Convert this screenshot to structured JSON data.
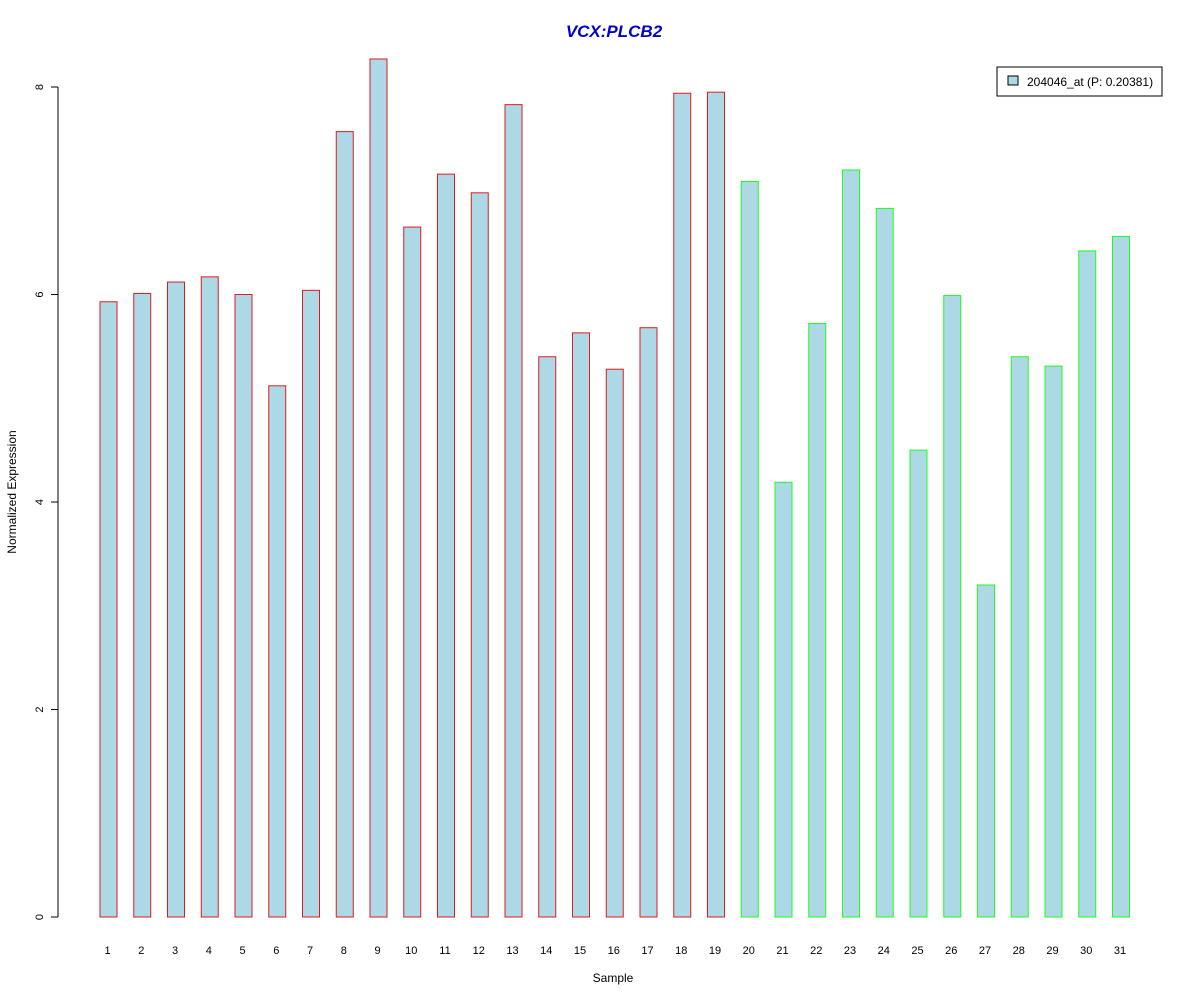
{
  "chart_data": {
    "type": "bar",
    "title": "VCX:PLCB2",
    "xlabel": "Sample",
    "ylabel": "Normalized Expression",
    "categories": [
      "1",
      "2",
      "3",
      "4",
      "5",
      "6",
      "7",
      "8",
      "9",
      "10",
      "11",
      "12",
      "13",
      "14",
      "15",
      "16",
      "17",
      "18",
      "19",
      "20",
      "21",
      "22",
      "23",
      "24",
      "25",
      "26",
      "27",
      "28",
      "29",
      "30",
      "31"
    ],
    "series": [
      {
        "name": "204046_at (P: 0.20381)",
        "values": [
          5.93,
          6.01,
          6.12,
          6.17,
          6.0,
          5.12,
          6.04,
          7.57,
          8.27,
          6.65,
          7.16,
          6.98,
          7.83,
          5.4,
          5.63,
          5.28,
          5.68,
          7.94,
          7.95,
          7.09,
          4.19,
          5.72,
          7.2,
          6.83,
          4.5,
          5.99,
          3.2,
          5.4,
          5.31,
          6.42,
          6.56
        ]
      }
    ],
    "groups": [
      {
        "from": 0,
        "to": 18,
        "border_color": "#e31a1c"
      },
      {
        "from": 19,
        "to": 30,
        "border_color": "#1aff1a"
      }
    ],
    "yticks": [
      0,
      2,
      4,
      6,
      8
    ],
    "ylim": [
      0,
      8.27
    ],
    "grid": false,
    "legend_position": "top-right",
    "colors": {
      "bar_fill": "#add8e6",
      "title": "#0000cc",
      "axis": "#000000"
    }
  }
}
